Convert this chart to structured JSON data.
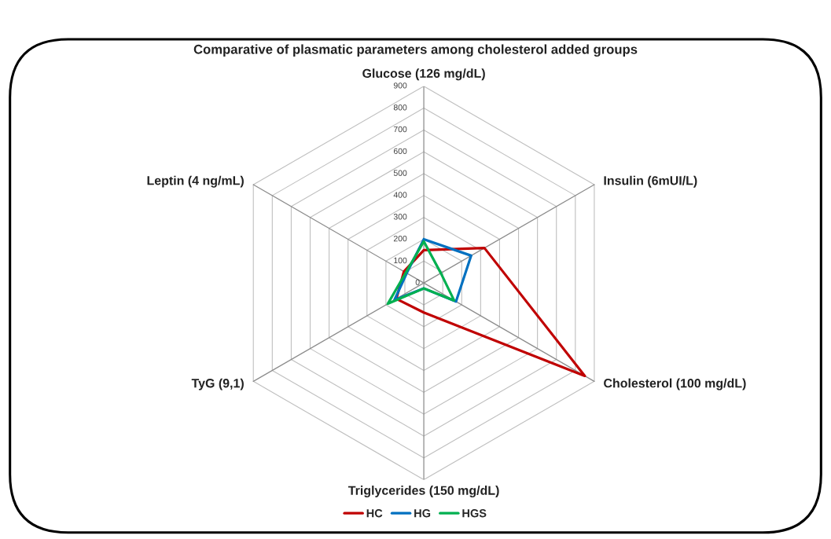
{
  "chart_data": {
    "type": "radar",
    "title": "Comparative of plasmatic parameters among cholesterol added groups",
    "categories": [
      "Glucose (126 mg/dL)",
      "Insulin (6mUI/L)",
      "Cholesterol (100 mg/dL)",
      "Triglycerides (150 mg/dL)",
      "TyG (9,1)",
      "Leptin (4 ng/mL)"
    ],
    "series": [
      {
        "name": "HC",
        "color": "#c00000",
        "values": [
          150,
          320,
          850,
          135,
          145,
          105
        ]
      },
      {
        "name": "HG",
        "color": "#0070c0",
        "values": [
          200,
          250,
          170,
          25,
          155,
          90
        ]
      },
      {
        "name": "HGS",
        "color": "#00b050",
        "values": [
          190,
          90,
          160,
          25,
          190,
          95
        ]
      }
    ],
    "ylim": [
      0,
      900
    ],
    "yticks": [
      0,
      100,
      200,
      300,
      400,
      500,
      600,
      700,
      800,
      900
    ],
    "grid": true,
    "legend": "bottom",
    "marker": "none",
    "line_style": "solid"
  }
}
